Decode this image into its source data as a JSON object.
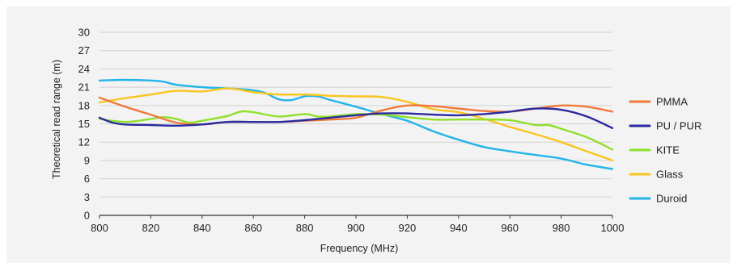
{
  "chart_data": {
    "type": "line",
    "xlabel": "Frequency (MHz)",
    "ylabel": "Theoretical read range (m)",
    "xlim": [
      800,
      1000
    ],
    "ylim": [
      0,
      30
    ],
    "xticks": [
      800,
      820,
      840,
      860,
      880,
      900,
      920,
      940,
      960,
      980,
      1000
    ],
    "yticks": [
      0,
      3,
      6,
      9,
      12,
      15,
      18,
      21,
      24,
      27,
      30
    ],
    "grid": "horizontal",
    "legend_position": "right",
    "series": [
      {
        "name": "PMMA",
        "color": "#f07a3c",
        "points": [
          [
            800,
            19.3
          ],
          [
            810,
            17.8
          ],
          [
            820,
            16.5
          ],
          [
            830,
            15.2
          ],
          [
            840,
            14.9
          ],
          [
            850,
            15.3
          ],
          [
            860,
            15.3
          ],
          [
            870,
            15.3
          ],
          [
            880,
            15.5
          ],
          [
            890,
            15.7
          ],
          [
            900,
            16.0
          ],
          [
            910,
            17.2
          ],
          [
            920,
            18.0
          ],
          [
            930,
            17.9
          ],
          [
            940,
            17.5
          ],
          [
            950,
            17.1
          ],
          [
            960,
            17.0
          ],
          [
            970,
            17.5
          ],
          [
            980,
            18.0
          ],
          [
            990,
            17.8
          ],
          [
            1000,
            17.0
          ]
        ]
      },
      {
        "name": "PU / PUR",
        "color": "#2a2aa0",
        "points": [
          [
            800,
            16.0
          ],
          [
            805,
            15.2
          ],
          [
            810,
            14.9
          ],
          [
            820,
            14.8
          ],
          [
            830,
            14.7
          ],
          [
            840,
            14.9
          ],
          [
            850,
            15.3
          ],
          [
            860,
            15.3
          ],
          [
            870,
            15.3
          ],
          [
            880,
            15.6
          ],
          [
            890,
            16.0
          ],
          [
            900,
            16.4
          ],
          [
            910,
            16.7
          ],
          [
            920,
            16.7
          ],
          [
            930,
            16.5
          ],
          [
            940,
            16.4
          ],
          [
            950,
            16.6
          ],
          [
            960,
            17.0
          ],
          [
            970,
            17.5
          ],
          [
            980,
            17.3
          ],
          [
            990,
            16.2
          ],
          [
            1000,
            14.3
          ]
        ]
      },
      {
        "name": "KITE",
        "color": "#8fe02a",
        "points": [
          [
            800,
            15.8
          ],
          [
            810,
            15.3
          ],
          [
            820,
            15.8
          ],
          [
            825,
            16.1
          ],
          [
            830,
            15.8
          ],
          [
            835,
            15.2
          ],
          [
            840,
            15.5
          ],
          [
            850,
            16.3
          ],
          [
            855,
            17.0
          ],
          [
            860,
            16.9
          ],
          [
            870,
            16.2
          ],
          [
            880,
            16.6
          ],
          [
            885,
            16.2
          ],
          [
            890,
            16.2
          ],
          [
            900,
            16.6
          ],
          [
            910,
            16.5
          ],
          [
            920,
            16.1
          ],
          [
            930,
            15.7
          ],
          [
            940,
            15.7
          ],
          [
            950,
            15.7
          ],
          [
            960,
            15.6
          ],
          [
            970,
            14.8
          ],
          [
            975,
            14.8
          ],
          [
            980,
            14.2
          ],
          [
            990,
            12.8
          ],
          [
            1000,
            10.8
          ]
        ]
      },
      {
        "name": "Glass",
        "color": "#f9c51e",
        "points": [
          [
            800,
            18.5
          ],
          [
            810,
            19.2
          ],
          [
            820,
            19.8
          ],
          [
            830,
            20.4
          ],
          [
            840,
            20.3
          ],
          [
            850,
            20.8
          ],
          [
            860,
            20.2
          ],
          [
            870,
            19.8
          ],
          [
            880,
            19.8
          ],
          [
            890,
            19.6
          ],
          [
            900,
            19.5
          ],
          [
            910,
            19.4
          ],
          [
            920,
            18.6
          ],
          [
            930,
            17.4
          ],
          [
            940,
            16.9
          ],
          [
            950,
            15.8
          ],
          [
            960,
            14.5
          ],
          [
            970,
            13.3
          ],
          [
            980,
            12.0
          ],
          [
            990,
            10.5
          ],
          [
            1000,
            9.0
          ]
        ]
      },
      {
        "name": "Duroid",
        "color": "#23b4ea",
        "points": [
          [
            800,
            22.1
          ],
          [
            810,
            22.2
          ],
          [
            820,
            22.1
          ],
          [
            825,
            21.9
          ],
          [
            830,
            21.4
          ],
          [
            840,
            21.0
          ],
          [
            850,
            20.8
          ],
          [
            860,
            20.5
          ],
          [
            865,
            20.0
          ],
          [
            870,
            19.0
          ],
          [
            875,
            18.9
          ],
          [
            880,
            19.5
          ],
          [
            885,
            19.5
          ],
          [
            890,
            18.9
          ],
          [
            900,
            17.8
          ],
          [
            910,
            16.6
          ],
          [
            920,
            15.5
          ],
          [
            930,
            13.8
          ],
          [
            940,
            12.4
          ],
          [
            950,
            11.2
          ],
          [
            960,
            10.5
          ],
          [
            970,
            9.9
          ],
          [
            980,
            9.3
          ],
          [
            990,
            8.3
          ],
          [
            1000,
            7.6
          ]
        ]
      }
    ]
  }
}
